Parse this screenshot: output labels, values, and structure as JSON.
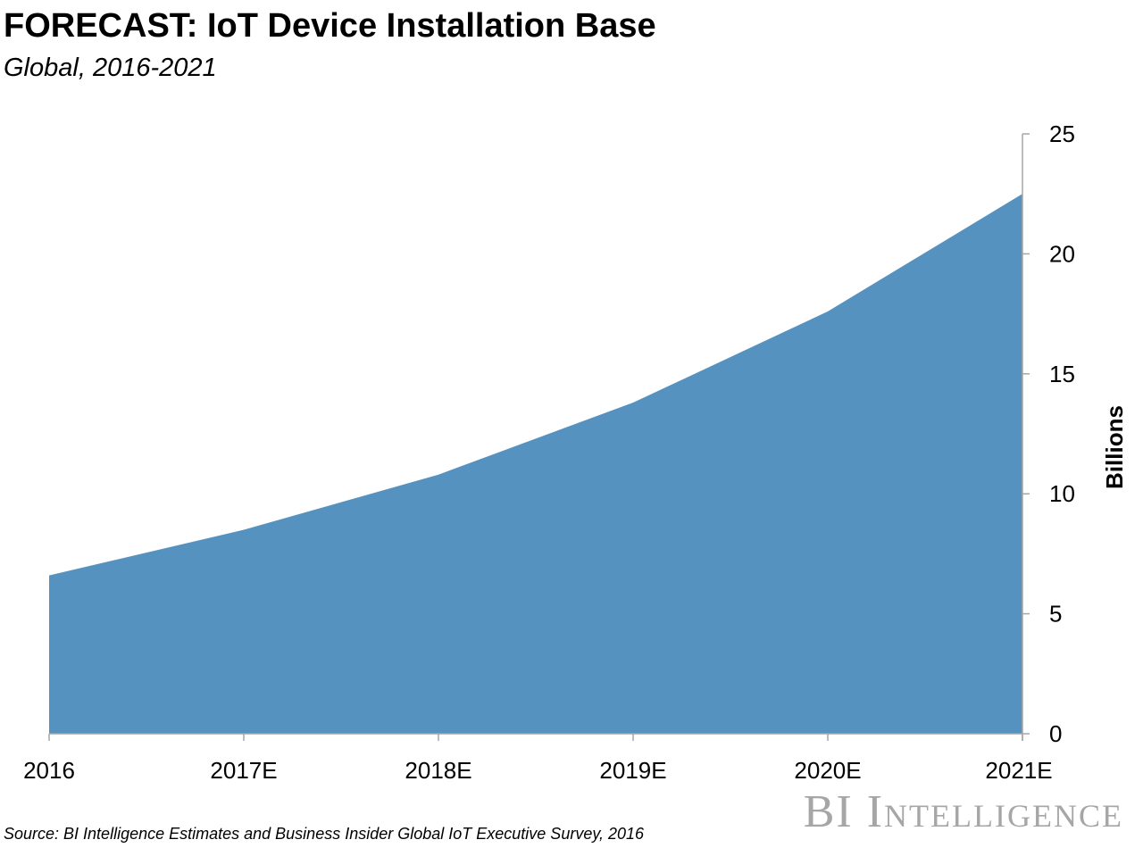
{
  "header": {
    "title": "FORECAST: IoT Device Installation Base",
    "subtitle": "Global, 2016-2021"
  },
  "chart_data": {
    "type": "area",
    "categories": [
      "2016",
      "2017E",
      "2018E",
      "2019E",
      "2020E",
      "2021E"
    ],
    "values": [
      6.6,
      8.5,
      10.8,
      13.8,
      17.6,
      22.5
    ],
    "ylabel": "Billions",
    "ylim": [
      0,
      25
    ],
    "yticks": [
      0,
      5,
      10,
      15,
      20,
      25
    ],
    "y_axis_position": "right",
    "grid": false,
    "fill_color": "#5592c0"
  },
  "footer": {
    "source": "Source: BI Intelligence Estimates and Business Insider Global IoT Executive Survey, 2016",
    "logo": "BI Intelligence"
  }
}
